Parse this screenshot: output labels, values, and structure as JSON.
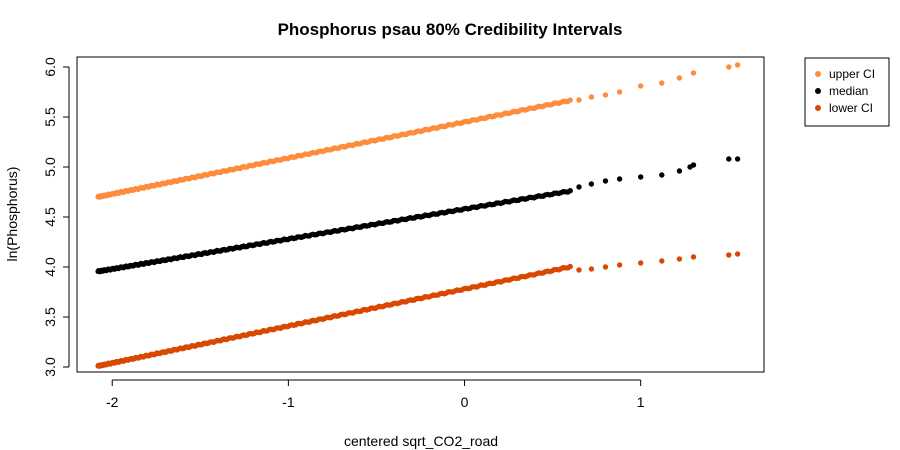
{
  "chart_data": {
    "type": "scatter",
    "title": "Phosphorus psau 80% Credibility Intervals",
    "xlabel": "centered sqrt_CO2_road",
    "ylabel": "ln(Phosphorus)",
    "xlim": [
      -2.2,
      1.7
    ],
    "ylim": [
      2.95,
      6.1
    ],
    "x_ticks": [
      -2,
      -1,
      0,
      1
    ],
    "y_ticks": [
      3.0,
      3.5,
      4.0,
      4.5,
      5.0,
      5.5,
      6.0
    ],
    "x_tick_labels": [
      "-2",
      "-1",
      "0",
      "1"
    ],
    "y_tick_labels": [
      "3.0",
      "3.5",
      "4.0",
      "4.5",
      "5.0",
      "5.5",
      "6.0"
    ],
    "grid": false,
    "legend_position": "outside-top-right",
    "series": [
      {
        "name": "upper CI",
        "color": "#fd8d3c",
        "intercept": 5.45,
        "slope": 0.36,
        "dense_x_range": [
          -2.08,
          0.6
        ],
        "sparse_x": [
          0.65,
          0.72,
          0.8,
          0.88,
          1.0,
          1.12,
          1.22,
          1.3,
          1.5,
          1.55
        ],
        "sparse_y": [
          5.67,
          5.7,
          5.72,
          5.75,
          5.81,
          5.84,
          5.89,
          5.94,
          6.0,
          6.02
        ]
      },
      {
        "name": "median",
        "color": "#000000",
        "intercept": 4.58,
        "slope": 0.3,
        "dense_x_range": [
          -2.08,
          0.6
        ],
        "sparse_x": [
          0.65,
          0.72,
          0.8,
          0.88,
          1.0,
          1.12,
          1.22,
          1.28,
          1.3,
          1.5,
          1.55
        ],
        "sparse_y": [
          4.8,
          4.83,
          4.86,
          4.88,
          4.9,
          4.92,
          4.96,
          5.0,
          5.02,
          5.08,
          5.08
        ]
      },
      {
        "name": "lower CI",
        "color": "#d94801",
        "intercept": 3.78,
        "slope": 0.37,
        "dense_x_range": [
          -2.08,
          0.6
        ],
        "sparse_x": [
          0.65,
          0.72,
          0.8,
          0.88,
          1.0,
          1.12,
          1.22,
          1.3,
          1.5,
          1.55
        ],
        "sparse_y": [
          3.97,
          3.98,
          4.0,
          4.02,
          4.04,
          4.06,
          4.08,
          4.1,
          4.12,
          4.13
        ]
      }
    ]
  }
}
